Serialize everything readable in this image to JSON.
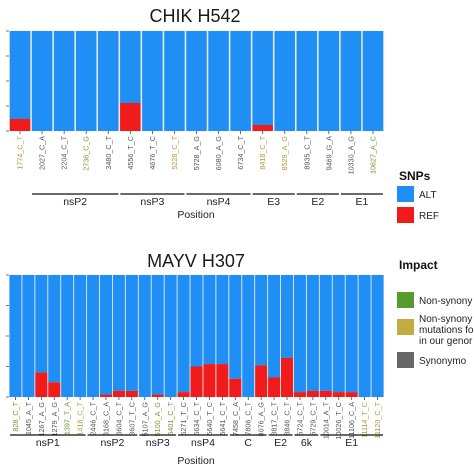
{
  "colors": {
    "alt": "#1f8ff5",
    "ref": "#f21b1b",
    "panel_bg": "#eaeaea",
    "synonymous_tick": "#555555",
    "nonsyn_tick": "#6d9b2e",
    "nonsyn_novel_tick": "#b09a3a",
    "impact_nonsyn": "#559b2d",
    "impact_nonsyn_novel": "#c4ac3e",
    "impact_syn": "#666666"
  },
  "legend": {
    "snps_title": "SNPs",
    "snps": [
      {
        "label": "ALT",
        "color_key": "alt"
      },
      {
        "label": "REF",
        "color_key": "ref"
      }
    ],
    "impact_title": "Impact",
    "impact": [
      {
        "lines": [
          "Non-synony"
        ],
        "color_key": "impact_nonsyn"
      },
      {
        "lines": [
          "Non-synony",
          "mutations fo",
          "in our genor"
        ],
        "color_key": "impact_nonsyn_novel"
      },
      {
        "lines": [
          "Synonymo"
        ],
        "color_key": "impact_syn"
      }
    ]
  },
  "chart_data": [
    {
      "type": "bar",
      "stacked": true,
      "title": "CHIK H542",
      "xlabel": "Position",
      "ylabel": "",
      "ylim": [
        0,
        1
      ],
      "series": [
        {
          "name": "ALT"
        },
        {
          "name": "REF"
        }
      ],
      "categories": [
        "1774_C_T",
        "2027_C_A",
        "2204_C_T",
        "2736_C_G",
        "3480_C_T",
        "4556_T_C",
        "4676_T_C",
        "5228_C_T",
        "5728_A_G",
        "6080_A_G",
        "6734_C_T",
        "8418_C_T",
        "8529_A_G",
        "8935_C_T",
        "9469_G_A",
        "10330_A_G",
        "10627_A_C"
      ],
      "impact": [
        "nonsyn_novel",
        "syn",
        "syn",
        "nonsyn",
        "syn",
        "syn",
        "syn",
        "nonsyn_novel",
        "syn",
        "syn",
        "syn",
        "nonsyn_novel",
        "nonsyn_novel",
        "syn",
        "syn",
        "syn",
        "nonsyn"
      ],
      "ref_values": [
        0.12,
        0,
        0,
        0,
        0,
        0.28,
        0,
        0,
        0,
        0,
        0,
        0.06,
        0,
        0,
        0,
        0,
        0
      ],
      "genes": [
        {
          "name": "nsP2",
          "first": 1,
          "last": 4
        },
        {
          "name": "nsP3",
          "first": 5,
          "last": 7
        },
        {
          "name": "nsP4",
          "first": 8,
          "last": 10
        },
        {
          "name": "E3",
          "first": 11,
          "last": 12
        },
        {
          "name": "E2",
          "first": 13,
          "last": 14
        },
        {
          "name": "E1",
          "first": 15,
          "last": 16
        }
      ]
    },
    {
      "type": "bar",
      "stacked": true,
      "title": "MAYV H307",
      "xlabel": "Position",
      "ylabel": "",
      "ylim": [
        0,
        1
      ],
      "series": [
        {
          "name": "ALT"
        },
        {
          "name": "REF"
        }
      ],
      "categories": [
        "828_C_T",
        "1045_A_T",
        "1267_A_G",
        "1279_A_G",
        "1397_T_A",
        "1418_C_T",
        "2446_C_T",
        "3168_C_A",
        "3604_C_T",
        "3607_T_C",
        "5107_A_G",
        "5100_A_G",
        "5401_C_T",
        "6271_T_C",
        "6634_C_T",
        "6640_T_C",
        "6641_C_T",
        "7458_C_A",
        "7806_C_T",
        "8076_A_G",
        "8817_C_T",
        "8846_C_T",
        "5724_C_T",
        "5729_C_T",
        "10014_A_T",
        "10026_T_C",
        "11106_C_A",
        "11114_T_C",
        "11120_C_T"
      ],
      "impact": [
        "nonsyn",
        "syn",
        "syn",
        "syn",
        "nonsyn",
        "nonsyn_novel",
        "syn",
        "syn",
        "syn",
        "syn",
        "syn",
        "nonsyn",
        "nonsyn",
        "syn",
        "syn",
        "syn",
        "syn",
        "syn",
        "syn",
        "syn",
        "syn",
        "syn",
        "syn",
        "syn",
        "syn",
        "syn",
        "syn",
        "nonsyn_novel",
        "nonsyn_novel"
      ],
      "ref_values": [
        0,
        0,
        0.2,
        0.12,
        0,
        0,
        0,
        0.02,
        0.05,
        0.05,
        0,
        0.02,
        0,
        0.04,
        0.25,
        0.27,
        0.27,
        0.15,
        0,
        0.26,
        0.16,
        0.32,
        0.04,
        0.05,
        0.05,
        0.04,
        0.04,
        0,
        0
      ],
      "genes": [
        {
          "name": "nsP1",
          "first": 0,
          "last": 5
        },
        {
          "name": "nsP2",
          "first": 6,
          "last": 9
        },
        {
          "name": "nsP3",
          "first": 10,
          "last": 12
        },
        {
          "name": "nsP4",
          "first": 13,
          "last": 16
        },
        {
          "name": "C",
          "first": 17,
          "last": 19
        },
        {
          "name": "E2",
          "first": 20,
          "last": 21
        },
        {
          "name": "6k",
          "first": 22,
          "last": 23
        },
        {
          "name": "E1",
          "first": 24,
          "last": 28
        }
      ]
    }
  ]
}
